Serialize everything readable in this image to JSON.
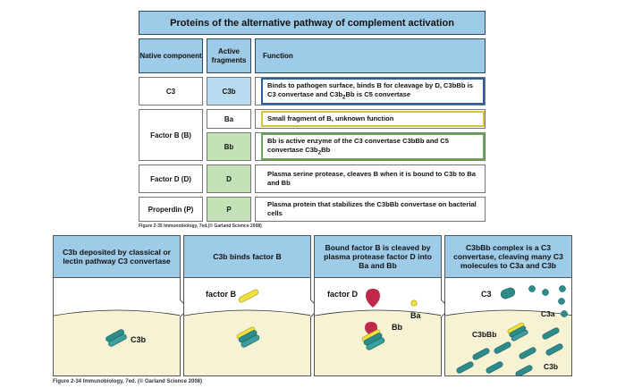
{
  "table": {
    "title": "Proteins of the alternative pathway of complement activation",
    "headers": {
      "native": "Native component",
      "fragments": "Active fragments",
      "function": "Function"
    },
    "rows": {
      "c3": {
        "native": "C3",
        "fragment": "C3b",
        "function_parts": [
          "Binds to pathogen surface, binds B for cleavage by D, C3bBb is C3 convertase and C3b",
          "2",
          "Bb is C5 convertase"
        ]
      },
      "ba": {
        "native": "Factor B (B)",
        "fragment": "Ba",
        "function": "Small fragment of B, unknown function"
      },
      "bb": {
        "fragment": "Bb",
        "function_parts": [
          "Bb is active enzyme of the C3 convertase C3bBb and C5 convertase C3b",
          "2",
          "Bb"
        ]
      },
      "d": {
        "native": "Factor D (D)",
        "fragment": "D",
        "function": "Plasma serine protease, cleaves B when it is bound to C3b to Ba and Bb"
      },
      "p": {
        "native": "Properdin (P)",
        "fragment": "P",
        "function": "Plasma protein that stabilizes the C3bBb convertase on bacterial cells"
      }
    },
    "caption": "Figure 2-35 Immunobiology, 7ed.(© Garland Science 2008)"
  },
  "panels": [
    {
      "heading": "C3b deposited by classical or lectin pathway C3 convertase",
      "labels": {
        "c3b": "C3b"
      }
    },
    {
      "heading": "C3b binds factor B",
      "labels": {
        "factor_b": "factor B"
      }
    },
    {
      "heading": "Bound factor B is cleaved by plasma protease factor D into Ba and Bb",
      "labels": {
        "factor_d": "factor D",
        "ba": "Ba",
        "bb": "Bb"
      }
    },
    {
      "heading": "C3bBb complex is a C3 convertase, cleaving many C3 molecules to C3a and C3b",
      "labels": {
        "c3": "C3",
        "c3a": "C3a",
        "c3bbb": "C3bBb",
        "c3b": "C3b"
      }
    }
  ],
  "figure_caption": "Figure 2-34 Immunobiology, 7ed. (© Garland Science 2008)",
  "colors": {
    "header_blue": "#9ecbe7",
    "fragment_blue": "#b9dcf0",
    "fragment_green": "#c3e2b7",
    "membrane": "#f6f2d4",
    "c3b_teal": "#2e8b8b",
    "factor_b_yellow": "#f2e03a",
    "factor_d_red": "#c0284a"
  }
}
